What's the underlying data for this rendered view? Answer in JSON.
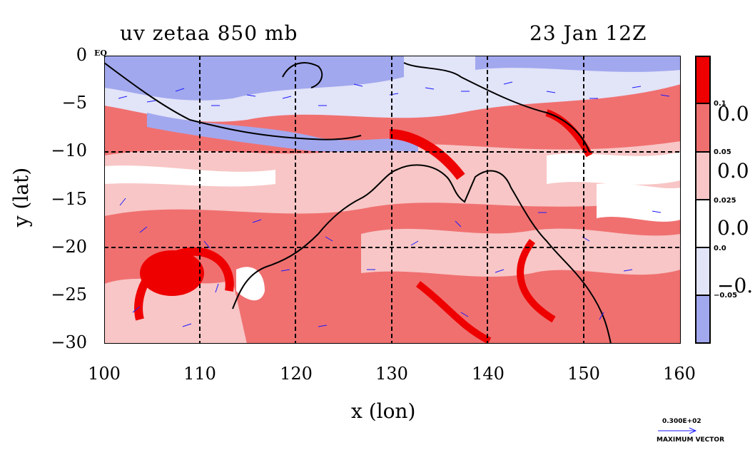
{
  "title_left": "uv zetaa 850 mb",
  "title_right": "23 Jan 12Z",
  "eq_label": "EQ",
  "x_label": "x (lon)",
  "y_label": "y (lat)",
  "x_ticks": [
    "100",
    "110",
    "120",
    "130",
    "140",
    "150",
    "160"
  ],
  "y_ticks": [
    "0",
    "−5",
    "−10",
    "−15",
    "−20",
    "−25",
    "−30"
  ],
  "colorbar": {
    "big_labels": [
      "0.0",
      "0.0",
      "0.0",
      "−0."
    ],
    "small_labels": [
      "0.1",
      "0.05",
      "0.025",
      "0.0",
      "−0.05"
    ],
    "colors": [
      "#ee0000",
      "#f07070",
      "#f8c6c6",
      "#ffffff",
      "#e2e4f8",
      "#a2a8ee"
    ]
  },
  "vector_scale": {
    "value": "0.300E+02",
    "label": "MAXIMUM VECTOR"
  }
}
